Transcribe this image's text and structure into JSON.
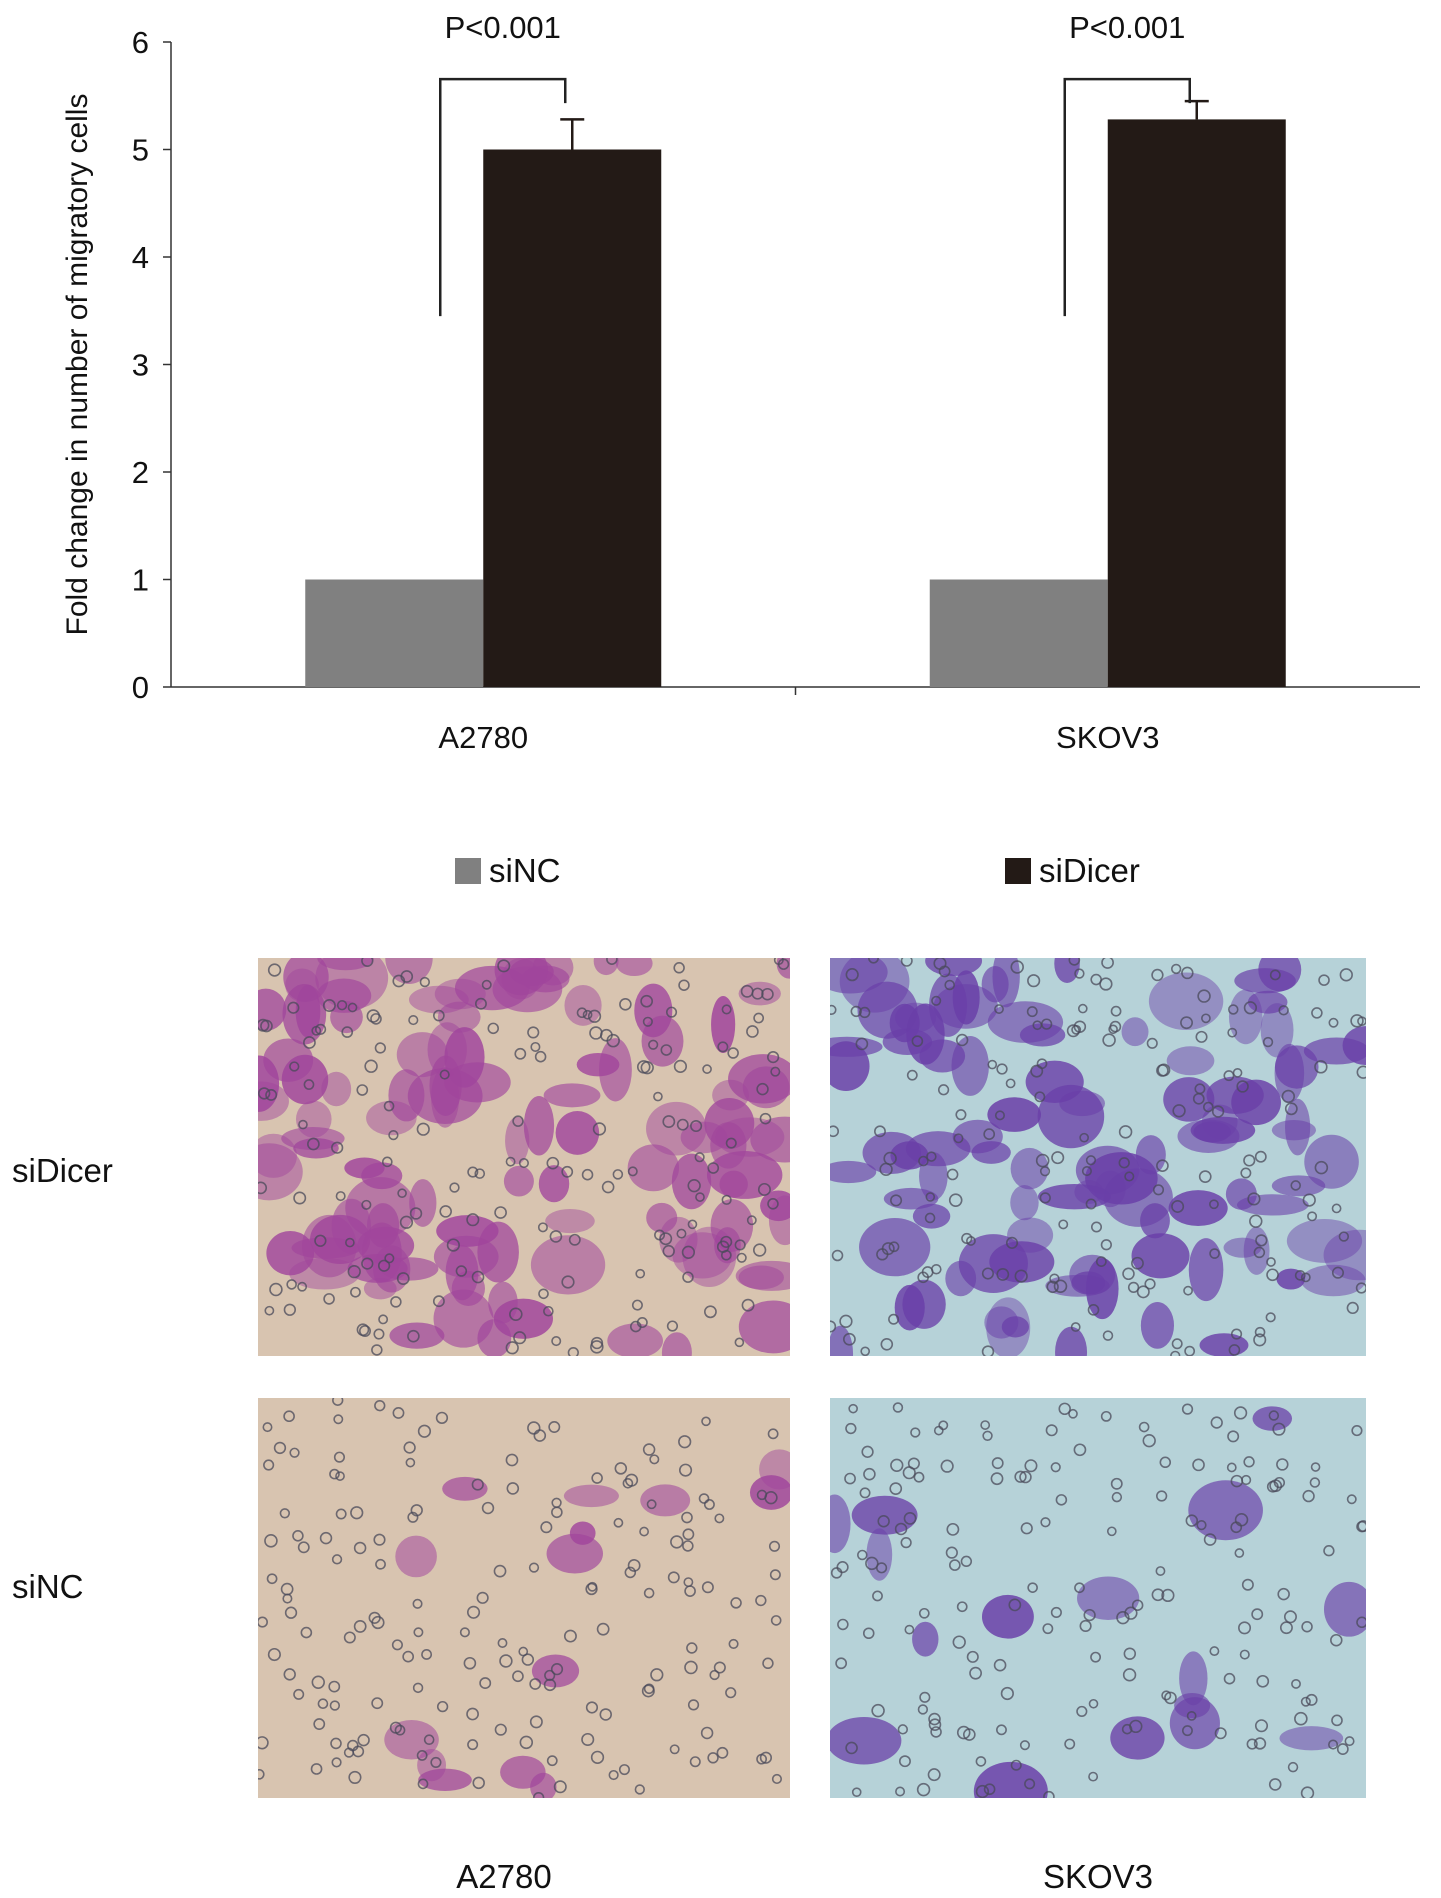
{
  "chart_data": {
    "type": "bar",
    "ylabel": "Fold change in number of migratory cells",
    "categories": [
      "A2780",
      "SKOV3"
    ],
    "series": [
      {
        "name": "siNC",
        "values": [
          1,
          1
        ],
        "error": [
          0,
          0
        ],
        "color": "#808080"
      },
      {
        "name": "siDicer",
        "values": [
          5.0,
          5.28
        ],
        "error": [
          0.28,
          0.17
        ],
        "color": "#231a16"
      }
    ],
    "ylim": [
      0,
      6
    ],
    "yticks": [
      0,
      1,
      2,
      3,
      4,
      5,
      6
    ],
    "annotations": [
      {
        "category": "A2780",
        "text": "P<0.001"
      },
      {
        "category": "SKOV3",
        "text": "P<0.001"
      }
    ],
    "legend_position": "bottom",
    "grid": false
  },
  "micrographs": {
    "row_labels": [
      "siDicer",
      "siNC"
    ],
    "column_labels": [
      "A2780",
      "SKOV3"
    ],
    "panel_colors": {
      "A2780_bg": "#d8c4b0",
      "A2780_stain": "#a0459c",
      "SKOV3_bg": "#b6d2d8",
      "SKOV3_stain": "#6a3fa8"
    }
  }
}
